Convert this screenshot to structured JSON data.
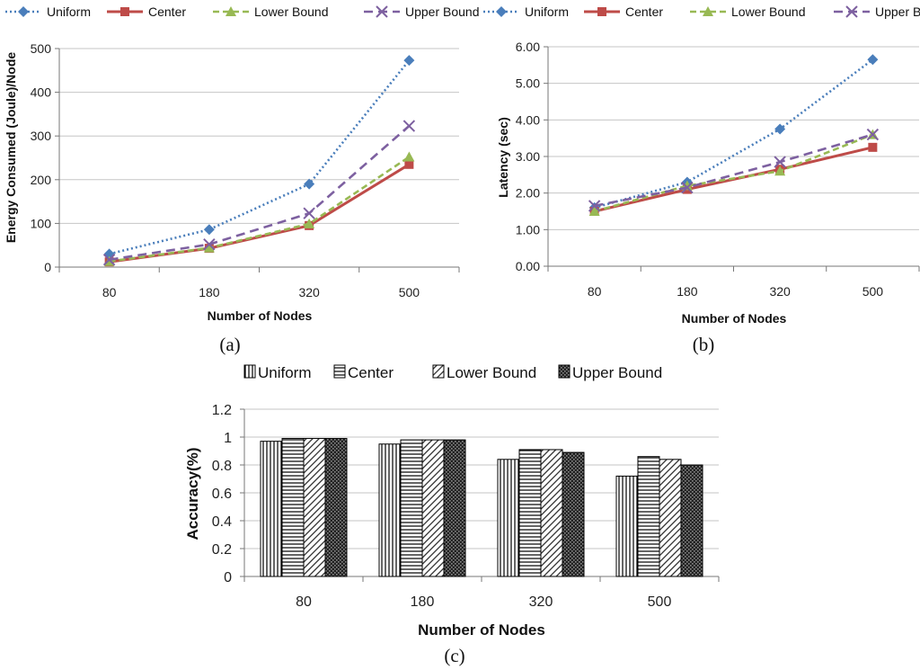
{
  "colors": {
    "uniform": "#4a7ebb",
    "center": "#be4b48",
    "lower": "#98b954",
    "upper": "#7d60a0"
  },
  "chart_data": [
    {
      "id": "a",
      "type": "line",
      "caption": "(a)",
      "xlabel": "Number of Nodes",
      "ylabel": "Energy Consumed (Joule)/Node",
      "categories": [
        "80",
        "180",
        "320",
        "500"
      ],
      "ylim": [
        0,
        500
      ],
      "yticks": [
        "0",
        "100",
        "200",
        "300",
        "400",
        "500"
      ],
      "series": [
        {
          "name": "Uniform",
          "values": [
            30,
            86,
            190,
            473
          ]
        },
        {
          "name": "Center",
          "values": [
            12,
            43,
            95,
            235
          ]
        },
        {
          "name": "Lower Bound",
          "values": [
            13,
            44,
            99,
            252
          ]
        },
        {
          "name": "Upper Bound",
          "values": [
            17,
            52,
            123,
            323
          ]
        }
      ]
    },
    {
      "id": "b",
      "type": "line",
      "caption": "(b)",
      "xlabel": "Number of Nodes",
      "ylabel": "Latency (sec)",
      "categories": [
        "80",
        "180",
        "320",
        "500"
      ],
      "ylim": [
        0,
        6
      ],
      "yticks": [
        "0.00",
        "1.00",
        "2.00",
        "3.00",
        "4.00",
        "5.00",
        "6.00"
      ],
      "series": [
        {
          "name": "Uniform",
          "values": [
            1.6,
            2.3,
            3.75,
            5.65
          ]
        },
        {
          "name": "Center",
          "values": [
            1.5,
            2.1,
            2.65,
            3.25
          ]
        },
        {
          "name": "Lower Bound",
          "values": [
            1.5,
            2.2,
            2.6,
            3.6
          ]
        },
        {
          "name": "Upper Bound",
          "values": [
            1.65,
            2.15,
            2.85,
            3.6
          ]
        }
      ]
    },
    {
      "id": "c",
      "type": "bar",
      "caption": "(c)",
      "xlabel": "Number of Nodes",
      "ylabel": "Accuracy(%)",
      "categories": [
        "80",
        "180",
        "320",
        "500"
      ],
      "ylim": [
        0,
        1.2
      ],
      "yticks": [
        "0",
        "0.2",
        "0.4",
        "0.6",
        "0.8",
        "1",
        "1.2"
      ],
      "series": [
        {
          "name": "Uniform",
          "values": [
            0.97,
            0.95,
            0.84,
            0.72
          ]
        },
        {
          "name": "Center",
          "values": [
            0.99,
            0.98,
            0.91,
            0.86
          ]
        },
        {
          "name": "Lower Bound",
          "values": [
            0.99,
            0.98,
            0.91,
            0.84
          ]
        },
        {
          "name": "Upper Bound",
          "values": [
            0.99,
            0.98,
            0.89,
            0.8
          ]
        }
      ]
    }
  ]
}
